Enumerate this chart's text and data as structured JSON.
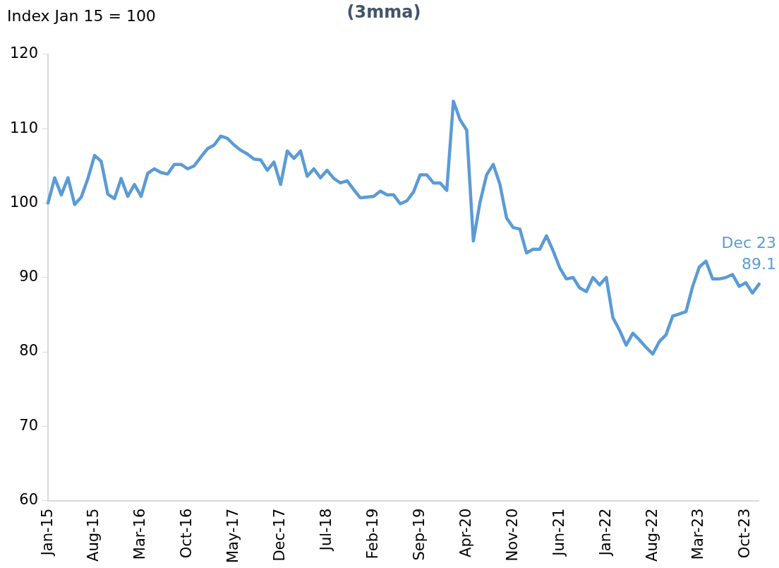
{
  "chart_data": {
    "type": "line",
    "title": "(3mma)",
    "ylabel": "Index Jan 15 = 100",
    "categories": [
      "Jan-15",
      null,
      null,
      null,
      null,
      null,
      null,
      "Aug-15",
      null,
      null,
      null,
      null,
      null,
      null,
      "Mar-16",
      null,
      null,
      null,
      null,
      null,
      null,
      "Oct-16",
      null,
      null,
      null,
      null,
      null,
      null,
      "May-17",
      null,
      null,
      null,
      null,
      null,
      null,
      "Dec-17",
      null,
      null,
      null,
      null,
      null,
      null,
      "Jul-18",
      null,
      null,
      null,
      null,
      null,
      null,
      "Feb-19",
      null,
      null,
      null,
      null,
      null,
      null,
      "Sep-19",
      null,
      null,
      null,
      null,
      null,
      null,
      "Apr-20",
      null,
      null,
      null,
      null,
      null,
      null,
      "Nov-20",
      null,
      null,
      null,
      null,
      null,
      null,
      "Jun-21",
      null,
      null,
      null,
      null,
      null,
      null,
      "Jan-22",
      null,
      null,
      null,
      null,
      null,
      null,
      "Aug-22",
      null,
      null,
      null,
      null,
      null,
      null,
      "Mar-23",
      null,
      null,
      null,
      null,
      null,
      null,
      "Oct-23",
      null,
      null
    ],
    "series": [
      {
        "color": "#5b9bd5",
        "values": [
          100.0,
          103.4,
          101.1,
          103.4,
          99.8,
          100.8,
          103.3,
          106.4,
          105.6,
          101.2,
          100.6,
          103.3,
          100.9,
          102.5,
          100.9,
          104.0,
          104.6,
          104.1,
          103.9,
          105.2,
          105.2,
          104.6,
          105.0,
          106.2,
          107.3,
          107.8,
          109.0,
          108.7,
          107.8,
          107.1,
          106.6,
          105.9,
          105.8,
          104.4,
          105.5,
          102.5,
          107.0,
          106.0,
          107.0,
          103.6,
          104.6,
          103.4,
          104.4,
          103.3,
          102.7,
          103.0,
          101.8,
          100.7,
          100.8,
          100.9,
          101.6,
          101.1,
          101.1,
          99.9,
          100.3,
          101.5,
          103.8,
          103.8,
          102.7,
          102.7,
          101.7,
          113.7,
          111.2,
          109.8,
          94.9,
          100.1,
          103.8,
          105.2,
          102.5,
          98.0,
          96.7,
          96.5,
          93.3,
          93.8,
          93.8,
          95.6,
          93.6,
          91.3,
          89.8,
          90.0,
          88.6,
          88.1,
          90.0,
          89.0,
          90.0,
          84.6,
          82.9,
          80.9,
          82.5,
          81.6,
          80.6,
          79.7,
          81.4,
          82.3,
          84.8,
          85.1,
          85.4,
          88.8,
          91.4,
          92.2,
          89.8,
          89.8,
          90.0,
          90.4,
          88.8,
          89.3,
          87.9,
          89.1
        ],
        "value_labels": [
          null,
          null,
          null,
          null,
          null,
          null,
          null,
          null,
          null,
          null,
          null,
          null,
          null,
          null,
          null,
          null,
          null,
          null,
          null,
          null,
          null,
          null,
          null,
          null,
          null,
          null,
          null,
          null,
          null,
          null,
          null,
          null,
          null,
          null,
          null,
          null,
          null,
          null,
          null,
          null,
          null,
          null,
          null,
          null,
          null,
          null,
          null,
          null,
          null,
          null,
          null,
          null,
          null,
          null,
          null,
          null,
          null,
          null,
          null,
          null,
          null,
          null,
          null,
          null,
          null,
          null,
          null,
          null,
          null,
          null,
          null,
          null,
          null,
          null,
          null,
          null,
          null,
          null,
          null,
          null,
          null,
          null,
          null,
          null,
          null,
          null,
          null,
          null,
          null,
          null,
          null,
          null,
          null,
          null,
          null,
          null,
          null,
          null,
          null,
          null,
          null,
          null,
          null,
          null,
          null,
          null,
          null,
          "89.1"
        ]
      }
    ],
    "annotations": [
      "Dec 23"
    ],
    "ylim": [
      60,
      120
    ],
    "yticks": [
      60,
      70,
      80,
      90,
      100,
      110,
      120
    ],
    "grid": false,
    "legend": false,
    "marker": "none",
    "line_style": "solid"
  }
}
